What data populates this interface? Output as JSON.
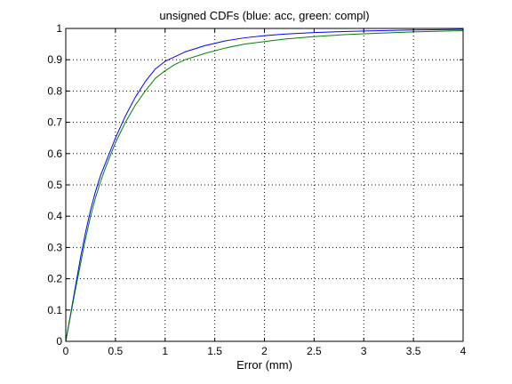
{
  "chart_data": {
    "type": "line",
    "title": "unsigned CDFs (blue: acc, green: compl)",
    "xlabel": "Error (mm)",
    "ylabel": "",
    "xlim": [
      0,
      4
    ],
    "ylim": [
      0,
      1
    ],
    "x_ticks": [
      "0",
      "0.5",
      "1",
      "1.5",
      "2",
      "2.5",
      "3",
      "3.5",
      "4"
    ],
    "y_ticks": [
      "0",
      "0.1",
      "0.2",
      "0.3",
      "0.4",
      "0.5",
      "0.6",
      "0.7",
      "0.8",
      "0.9",
      "1"
    ],
    "grid": true,
    "grid_style": "dotted",
    "legend": "none",
    "series": [
      {
        "color": "#0000ff",
        "x": [
          0,
          0.05,
          0.1,
          0.15,
          0.2,
          0.25,
          0.3,
          0.35,
          0.4,
          0.5,
          0.6,
          0.7,
          0.8,
          0.9,
          1.0,
          1.1,
          1.2,
          1.4,
          1.6,
          1.8,
          2.0,
          2.2,
          2.5,
          2.8,
          3.0,
          3.5,
          4.0
        ],
        "y": [
          0,
          0.09,
          0.18,
          0.27,
          0.35,
          0.42,
          0.48,
          0.53,
          0.57,
          0.65,
          0.72,
          0.78,
          0.83,
          0.87,
          0.895,
          0.91,
          0.925,
          0.945,
          0.96,
          0.97,
          0.977,
          0.982,
          0.987,
          0.99,
          0.992,
          0.995,
          0.997
        ]
      },
      {
        "color": "#008000",
        "x": [
          0,
          0.05,
          0.1,
          0.15,
          0.2,
          0.25,
          0.3,
          0.35,
          0.4,
          0.5,
          0.6,
          0.7,
          0.8,
          0.9,
          1.0,
          1.1,
          1.2,
          1.4,
          1.6,
          1.8,
          2.0,
          2.2,
          2.5,
          2.8,
          3.0,
          3.5,
          4.0
        ],
        "y": [
          0,
          0.085,
          0.17,
          0.25,
          0.33,
          0.4,
          0.46,
          0.51,
          0.555,
          0.635,
          0.7,
          0.755,
          0.8,
          0.84,
          0.865,
          0.885,
          0.9,
          0.92,
          0.937,
          0.95,
          0.958,
          0.966,
          0.974,
          0.98,
          0.983,
          0.989,
          0.993
        ]
      }
    ]
  }
}
